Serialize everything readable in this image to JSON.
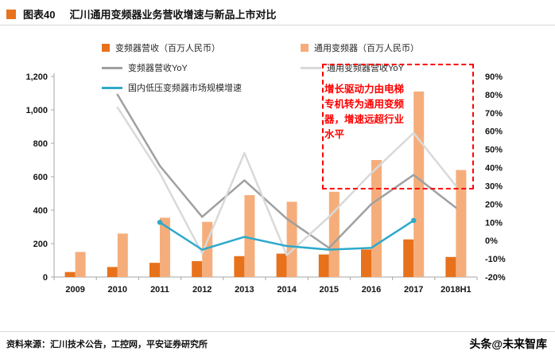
{
  "header": {
    "tag": "图表40",
    "title": "汇川通用变频器业务营收增速与新品上市对比",
    "accent_color": "#E8711C"
  },
  "annotation": {
    "text": "增长驱动力由电梯专机转为通用变频器，增速远超行业水平",
    "color": "#FF0000"
  },
  "footer": {
    "source": "资料来源：汇川技术公告，工控网，平安证券研究所",
    "watermark": "头条@未来智库"
  },
  "chart_data": {
    "type": "combo",
    "title": "汇川通用变频器业务营收增速与新品上市对比",
    "categories": [
      "2009",
      "2010",
      "2011",
      "2012",
      "2013",
      "2014",
      "2015",
      "2016",
      "2017",
      "2018H1"
    ],
    "bar_series": [
      {
        "name": "变频器营收（百万人民币）",
        "color": "#E8711C",
        "axis": "left",
        "values": [
          30,
          60,
          85,
          95,
          125,
          140,
          135,
          165,
          225,
          120
        ]
      },
      {
        "name": "通用变频器（百万人民币）",
        "color": "#F5AE7B",
        "axis": "left",
        "values": [
          150,
          260,
          355,
          330,
          490,
          450,
          510,
          700,
          1110,
          640
        ]
      }
    ],
    "line_series": [
      {
        "name": "变频器营收YoY",
        "color": "#A0A0A0",
        "axis": "right",
        "values": [
          null,
          80,
          41,
          13,
          33,
          12,
          -4,
          20,
          36,
          18
        ]
      },
      {
        "name": "通用变频器营收YoY",
        "color": "#D9D9D9",
        "axis": "right",
        "values": [
          null,
          73,
          37,
          -7,
          48,
          -8,
          13,
          37,
          59,
          30
        ]
      },
      {
        "name": "国内低压变频器市场规模增速",
        "color": "#2EA9CB",
        "axis": "right",
        "endpoint_markers": true,
        "values": [
          null,
          null,
          10,
          -5,
          2,
          -3,
          -5,
          -4,
          11,
          null
        ]
      }
    ],
    "left_axis": {
      "min": 0,
      "max": 1200,
      "step": 200
    },
    "right_axis": {
      "min": -20,
      "max": 90,
      "step": 10,
      "suffix": "%"
    },
    "legend_position": "top",
    "gridlines": false
  }
}
